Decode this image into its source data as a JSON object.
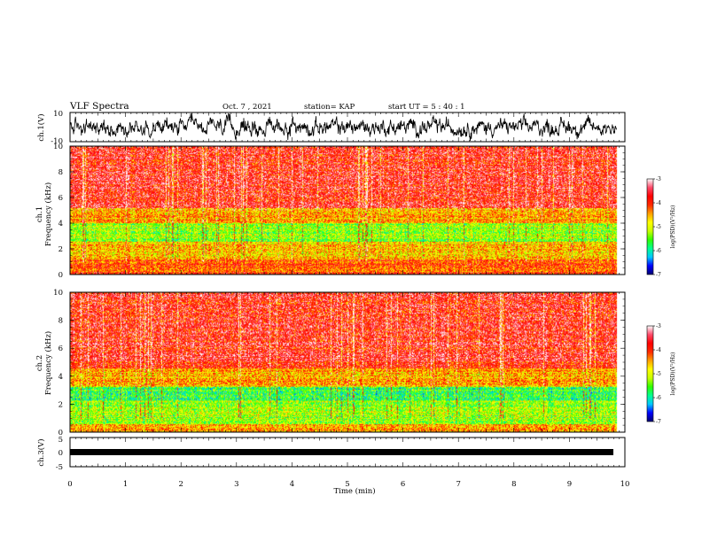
{
  "header": {
    "title": "VLF Spectra",
    "date": "Oct. 7 , 2021",
    "station": "station= KAP",
    "start": "start UT = 5 : 40 : 1"
  },
  "chart_data": [
    {
      "type": "line",
      "name": "ch1-waveform",
      "ylabel": "ch.1(V)",
      "ylim": [
        -10,
        10
      ],
      "ytick_labels": [
        "10",
        "-10"
      ],
      "xlim": [
        0,
        10
      ]
    },
    {
      "type": "heatmap",
      "name": "ch1-spectrogram",
      "ylabel_line1": "ch.1",
      "ylabel_line2": "Frequency (kHz)",
      "ylim": [
        0,
        10
      ],
      "yticks": [
        "0",
        "2",
        "4",
        "6",
        "8",
        "10"
      ],
      "xlim": [
        0,
        10
      ],
      "data_end_min": 9.85,
      "colorbar": {
        "label": "log(PSD)(V²/Hz)",
        "range": [
          -7,
          -3
        ],
        "ticks": [
          "-3",
          "-4",
          "-5",
          "-6",
          "-7"
        ]
      }
    },
    {
      "type": "heatmap",
      "name": "ch2-spectrogram",
      "ylabel_line1": "ch.2",
      "ylabel_line2": "Frequency (kHz)",
      "ylim": [
        0,
        10
      ],
      "yticks": [
        "0",
        "2",
        "4",
        "6",
        "8",
        "10"
      ],
      "xlim": [
        0,
        10
      ],
      "data_end_min": 9.85,
      "colorbar": {
        "label": "log(PSD)(V²/Hz)",
        "range": [
          -7,
          -3
        ],
        "ticks": [
          "-3",
          "-4",
          "-5",
          "-6",
          "-7"
        ]
      }
    },
    {
      "type": "line",
      "name": "ch3-waveform",
      "ylabel": "ch.3(V)",
      "ylim": [
        -5,
        5
      ],
      "ytick_labels": [
        "5",
        "0",
        "-5"
      ],
      "xlim": [
        0,
        10
      ],
      "xlabel": "Time (min)",
      "xticks": [
        "0",
        "1",
        "2",
        "3",
        "4",
        "5",
        "6",
        "7",
        "8",
        "9",
        "10"
      ]
    }
  ],
  "colors": {
    "axis": "#000000",
    "colormap": [
      "#000070",
      "#0000ff",
      "#00c8ff",
      "#00ff90",
      "#30ff00",
      "#c8ff00",
      "#ffff00",
      "#ffa000",
      "#ff2a00",
      "#ff0000",
      "#ff4a6a",
      "#ffffff"
    ]
  }
}
